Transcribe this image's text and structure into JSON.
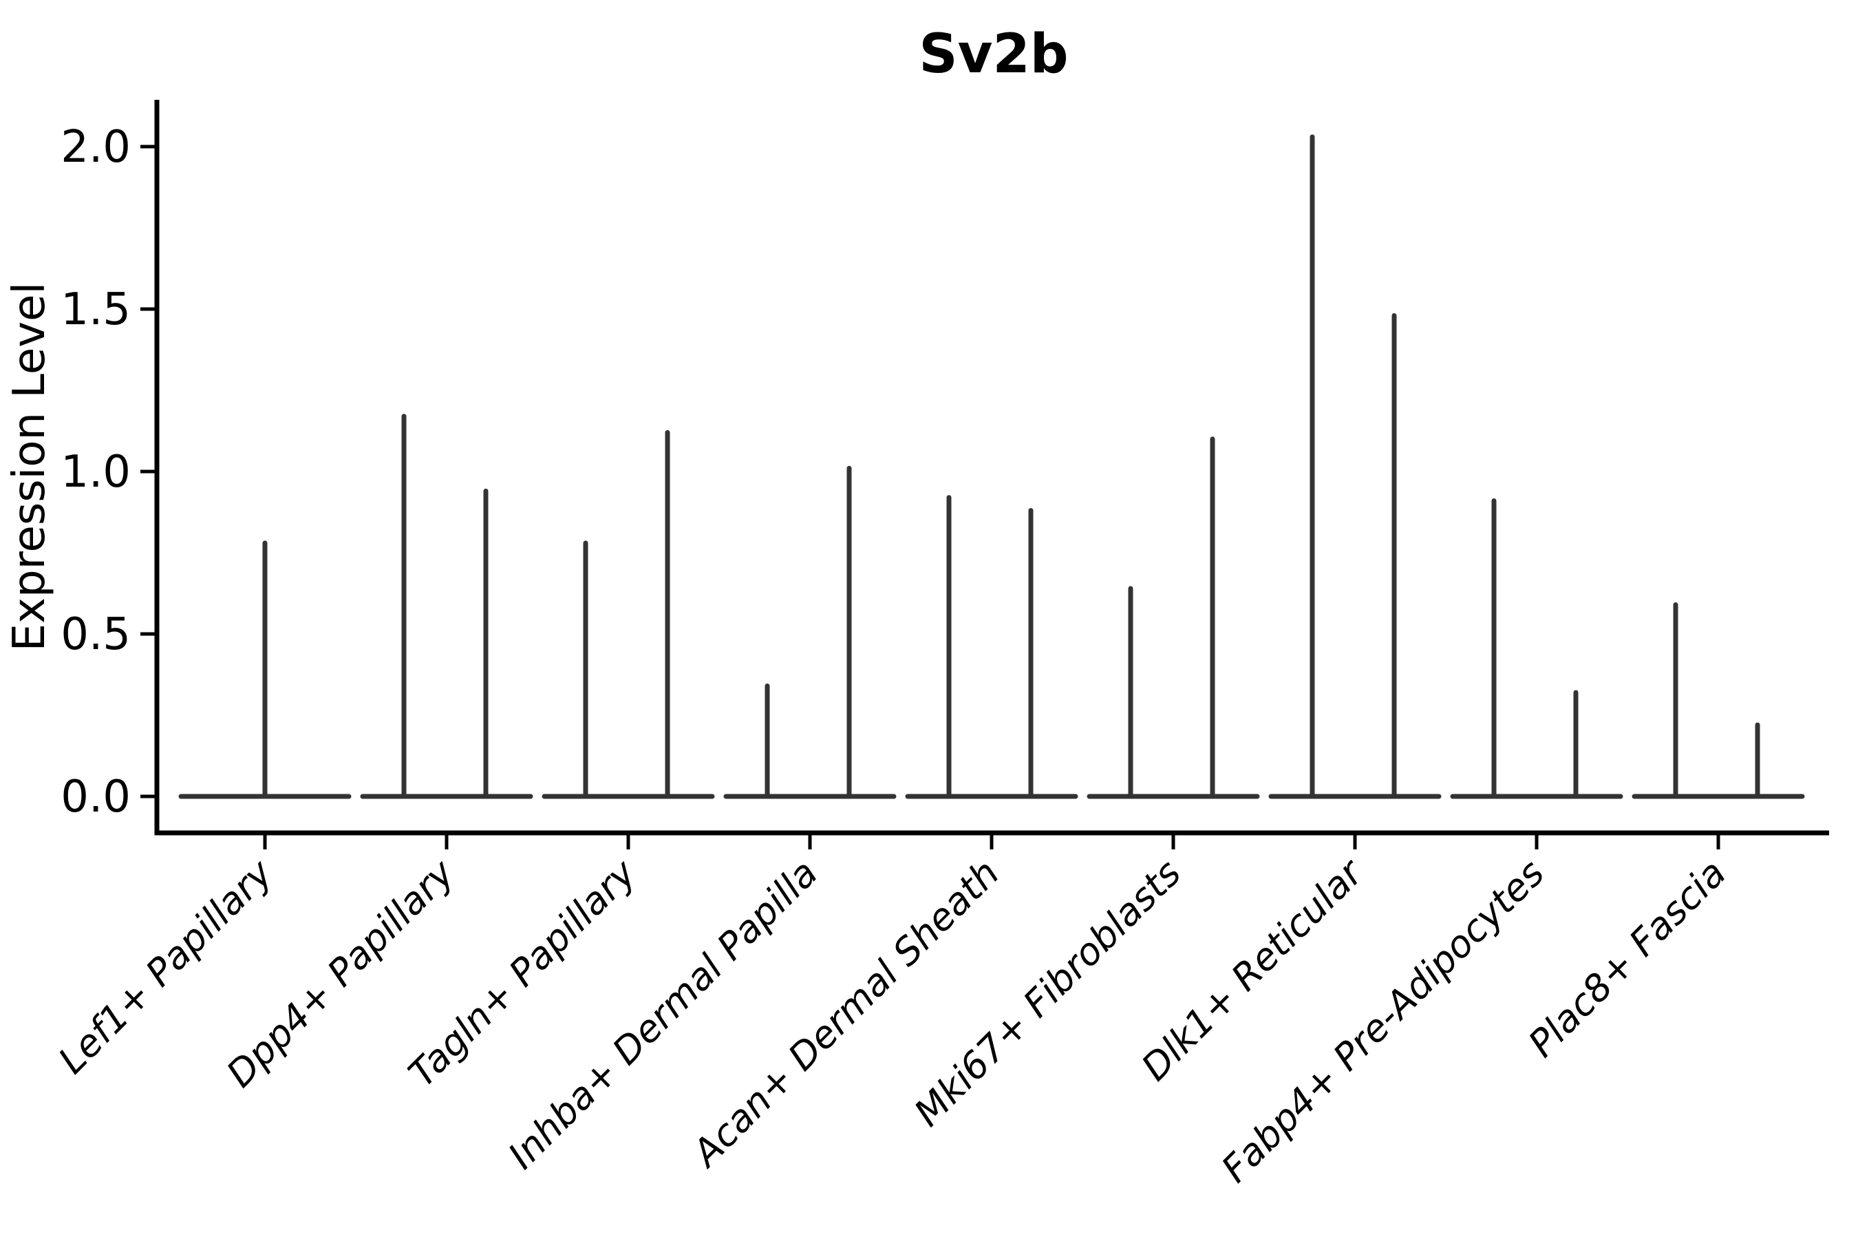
{
  "figure": {
    "background": "#ffffff"
  },
  "chart_data": {
    "type": "violin",
    "title": "Sv2b",
    "title_style": "bold",
    "xlabel": "",
    "ylabel": "Expression Level",
    "ylim": [
      -0.11,
      2.15
    ],
    "y_ticks": [
      0.0,
      0.5,
      1.0,
      1.5,
      2.0
    ],
    "y_tick_labels": [
      "0.0",
      "0.5",
      "1.0",
      "1.5",
      "2.0"
    ],
    "grid": false,
    "legend_position": "none",
    "violin_line_color": "#333333",
    "axis_color": "#000000",
    "x_tick_label_style": "italic, rotated 45deg, right-anchored",
    "categories": [
      "Lef1+ Papillary",
      "Dpp4+ Papillary",
      "Tagln+ Papillary",
      "Inhba+ Dermal Papilla",
      "Acan+ Dermal Sheath",
      "Mki67+ Fibroblasts",
      "Dlk1+ Reticular",
      "Fabp4+ Pre-Adipocytes",
      "Plac8+ Fascia"
    ],
    "violins": [
      {
        "category": "Lef1+ Papillary",
        "baseline_value": 0.0,
        "spike_max_values": [
          0.78
        ]
      },
      {
        "category": "Dpp4+ Papillary",
        "baseline_value": 0.0,
        "spike_max_values": [
          1.17,
          0.94
        ]
      },
      {
        "category": "Tagln+ Papillary",
        "baseline_value": 0.0,
        "spike_max_values": [
          0.78,
          1.12
        ]
      },
      {
        "category": "Inhba+ Dermal Papilla",
        "baseline_value": 0.0,
        "spike_max_values": [
          0.34,
          1.01
        ]
      },
      {
        "category": "Acan+ Dermal Sheath",
        "baseline_value": 0.0,
        "spike_max_values": [
          0.92,
          0.88
        ]
      },
      {
        "category": "Mki67+ Fibroblasts",
        "baseline_value": 0.0,
        "spike_max_values": [
          0.64,
          1.1
        ]
      },
      {
        "category": "Dlk1+ Reticular",
        "baseline_value": 0.0,
        "spike_max_values": [
          2.03,
          1.48
        ]
      },
      {
        "category": "Fabp4+ Pre-Adipocytes",
        "baseline_value": 0.0,
        "spike_max_values": [
          0.91,
          0.32
        ]
      },
      {
        "category": "Plac8+ Fascia",
        "baseline_value": 0.0,
        "spike_max_values": [
          0.59,
          0.22
        ]
      }
    ],
    "description": "Violin plot of gene expression; each violin collapses to a flat base at 0 with thin vertical spikes reaching the maximum expression value(s)."
  }
}
